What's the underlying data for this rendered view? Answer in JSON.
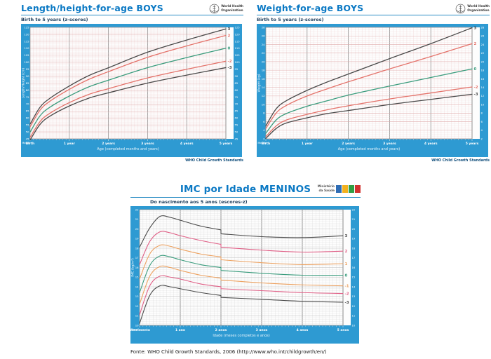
{
  "colors": {
    "title_blue": "#0b79c4",
    "band_blue": "#2e9ad2",
    "curve_black": "#4a4a4a",
    "curve_red": "#e4736b",
    "curve_green": "#3a9c7d",
    "curve_pink": "#e05f86",
    "curve_orange": "#eda15f"
  },
  "chart_data": [
    {
      "id": "length-height-for-age-boys",
      "type": "line",
      "title": "Length/height-for-age BOYS",
      "subtitle": "Birth to 5 years (z-scores)",
      "logo": {
        "name": "world-health-organization-logo",
        "line1": "World Health",
        "line2": "Organization"
      },
      "footer": "WHO Child Growth Standards",
      "xlabel": "Age (completed months and years)",
      "ylabel": "Length/Height (cm)",
      "months_label": "Months",
      "xlim": [
        0,
        5
      ],
      "ylim": [
        45,
        125
      ],
      "y_tick_step": 5,
      "y_major_step": 5,
      "y_minor_step": 1,
      "x_tick_labels": [
        "Birth",
        "1 year",
        "2 years",
        "3 years",
        "4 years",
        "5 years"
      ],
      "x": [
        0,
        0.25,
        0.5,
        1,
        1.5,
        2,
        3,
        4,
        5
      ],
      "series": [
        {
          "name": "3",
          "color": "#4a4a4a",
          "values": [
            55.6,
            67.6,
            74.0,
            82.9,
            90.4,
            96.0,
            107.2,
            115.9,
            123.9
          ]
        },
        {
          "name": "2",
          "color": "#e4736b",
          "values": [
            53.7,
            65.5,
            71.9,
            80.5,
            87.7,
            93.2,
            103.5,
            111.7,
            119.2
          ]
        },
        {
          "name": "0",
          "color": "#3a9c7d",
          "values": [
            49.9,
            61.4,
            67.6,
            75.7,
            82.3,
            87.1,
            96.1,
            103.3,
            110.0
          ]
        },
        {
          "name": "-2",
          "color": "#e4736b",
          "values": [
            46.1,
            57.3,
            63.3,
            71.0,
            76.9,
            81.0,
            88.7,
            94.9,
            100.7
          ]
        },
        {
          "name": "-3",
          "color": "#4a4a4a",
          "values": [
            44.2,
            55.3,
            61.2,
            68.6,
            74.2,
            78.0,
            85.0,
            90.7,
            96.1
          ]
        }
      ],
      "size": [
        315,
        190
      ],
      "line_width": 1.3,
      "band_color": "#2e9ad2",
      "grid": {
        "minor": "#f0d4d4",
        "major": "#dfaaaa",
        "year": "#8c8c8c"
      }
    },
    {
      "id": "weight-for-age-boys",
      "type": "line",
      "title": "Weight-for-age BOYS",
      "subtitle": "Birth to 5 years (z-scores)",
      "logo": {
        "name": "world-health-organization-logo",
        "line1": "World Health",
        "line2": "Organization"
      },
      "footer": "WHO Child Growth Standards",
      "xlabel": "Age (completed months and years)",
      "ylabel": "Weight (kg)",
      "months_label": "Months",
      "xlim": [
        0,
        5
      ],
      "ylim": [
        2,
        28
      ],
      "y_tick_step": 2,
      "y_major_step": 2,
      "y_minor_step": 0.5,
      "x_tick_labels": [
        "Birth",
        "1 year",
        "2 years",
        "3 years",
        "4 years",
        "5 years"
      ],
      "x": [
        0,
        0.25,
        0.5,
        1,
        1.5,
        2,
        3,
        4,
        5
      ],
      "series": [
        {
          "name": "3",
          "color": "#4a4a4a",
          "values": [
            5.0,
            9.0,
            10.9,
            13.3,
            15.3,
            17.1,
            20.7,
            24.2,
            27.9
          ]
        },
        {
          "name": "2",
          "color": "#e4736b",
          "values": [
            4.4,
            8.0,
            9.8,
            12.0,
            13.7,
            15.3,
            18.3,
            21.2,
            24.2
          ]
        },
        {
          "name": "0",
          "color": "#3a9c7d",
          "values": [
            3.3,
            6.4,
            7.9,
            9.6,
            10.9,
            12.2,
            14.3,
            16.3,
            18.3
          ]
        },
        {
          "name": "-2",
          "color": "#e4736b",
          "values": [
            2.5,
            5.0,
            6.4,
            7.7,
            8.8,
            9.7,
            11.3,
            12.7,
            14.1
          ]
        },
        {
          "name": "-3",
          "color": "#4a4a4a",
          "values": [
            2.1,
            4.4,
            5.7,
            6.9,
            7.9,
            8.6,
            10.0,
            11.2,
            12.4
          ]
        }
      ],
      "size": [
        330,
        190
      ],
      "line_width": 1.3,
      "band_color": "#2e9ad2",
      "grid": {
        "minor": "#f0d4d4",
        "major": "#dfaaaa",
        "year": "#8c8c8c"
      }
    },
    {
      "id": "imc-por-idade-meninos",
      "type": "line",
      "title": "IMC por Idade MENINOS",
      "subtitle": "Do nascimento aos 5 anos (escores-z)",
      "logo": {
        "name": "ministerio-da-saude-brasil-logo",
        "line1": "Ministério",
        "line2": "da Saúde",
        "block_colors": [
          "#2f6db5",
          "#f2b01e",
          "#319e43",
          "#d23330"
        ]
      },
      "source_note": "Fonte: WHO Child Growth Standards, 2006 (http://www.who.int/childgrowth/en/)",
      "xlabel": "Idade (meses completos e anos)",
      "ylabel": "IMC (kg/m²)",
      "months_label": "Meses",
      "xlim": [
        0,
        5
      ],
      "ylim": [
        10,
        22
      ],
      "y_tick_step": 1,
      "y_major_step": 1,
      "y_minor_step": 0.2,
      "x_tick_labels": [
        "Nascimento",
        "1 ano",
        "2 anos",
        "3 anos",
        "4 anos",
        "5 anos"
      ],
      "x": [
        0,
        0.25,
        0.5,
        0.75,
        1,
        1.5,
        2,
        2,
        3,
        4,
        5
      ],
      "step_note": "curves show a break at 2 years (length to height change)",
      "series": [
        {
          "name": "3",
          "color": "#4a4a4a",
          "values": [
            18.1,
            20.1,
            21.3,
            21.2,
            20.9,
            20.3,
            19.9,
            19.5,
            19.2,
            19.1,
            19.3
          ]
        },
        {
          "name": "2",
          "color": "#e05f86",
          "values": [
            16.3,
            18.7,
            19.7,
            19.6,
            19.3,
            18.8,
            18.4,
            18.1,
            17.8,
            17.6,
            17.7
          ]
        },
        {
          "name": "1",
          "color": "#eda15f",
          "values": [
            14.8,
            17.4,
            18.3,
            18.2,
            17.9,
            17.4,
            17.1,
            16.8,
            16.5,
            16.3,
            16.4
          ]
        },
        {
          "name": "0",
          "color": "#3a9c7d",
          "values": [
            13.4,
            16.2,
            17.2,
            17.1,
            16.8,
            16.3,
            16.0,
            15.7,
            15.4,
            15.2,
            15.2
          ]
        },
        {
          "name": "-1",
          "color": "#eda15f",
          "values": [
            12.2,
            15.1,
            16.1,
            16.0,
            15.7,
            15.2,
            14.9,
            14.7,
            14.4,
            14.2,
            14.1
          ]
        },
        {
          "name": "-2",
          "color": "#e05f86",
          "values": [
            11.1,
            14.1,
            15.1,
            15.0,
            14.8,
            14.3,
            14.0,
            13.8,
            13.6,
            13.4,
            13.3
          ]
        },
        {
          "name": "-3",
          "color": "#4a4a4a",
          "values": [
            10.2,
            13.1,
            14.1,
            14.0,
            13.8,
            13.4,
            13.1,
            12.9,
            12.7,
            12.5,
            12.4
          ]
        }
      ],
      "size": [
        326,
        196
      ],
      "line_width": 1.1,
      "band_color": "#2e9ad2",
      "grid": {
        "minor": "#dcdcdc",
        "major": "#bdbdbd",
        "year": "#7a7a7a"
      }
    }
  ]
}
